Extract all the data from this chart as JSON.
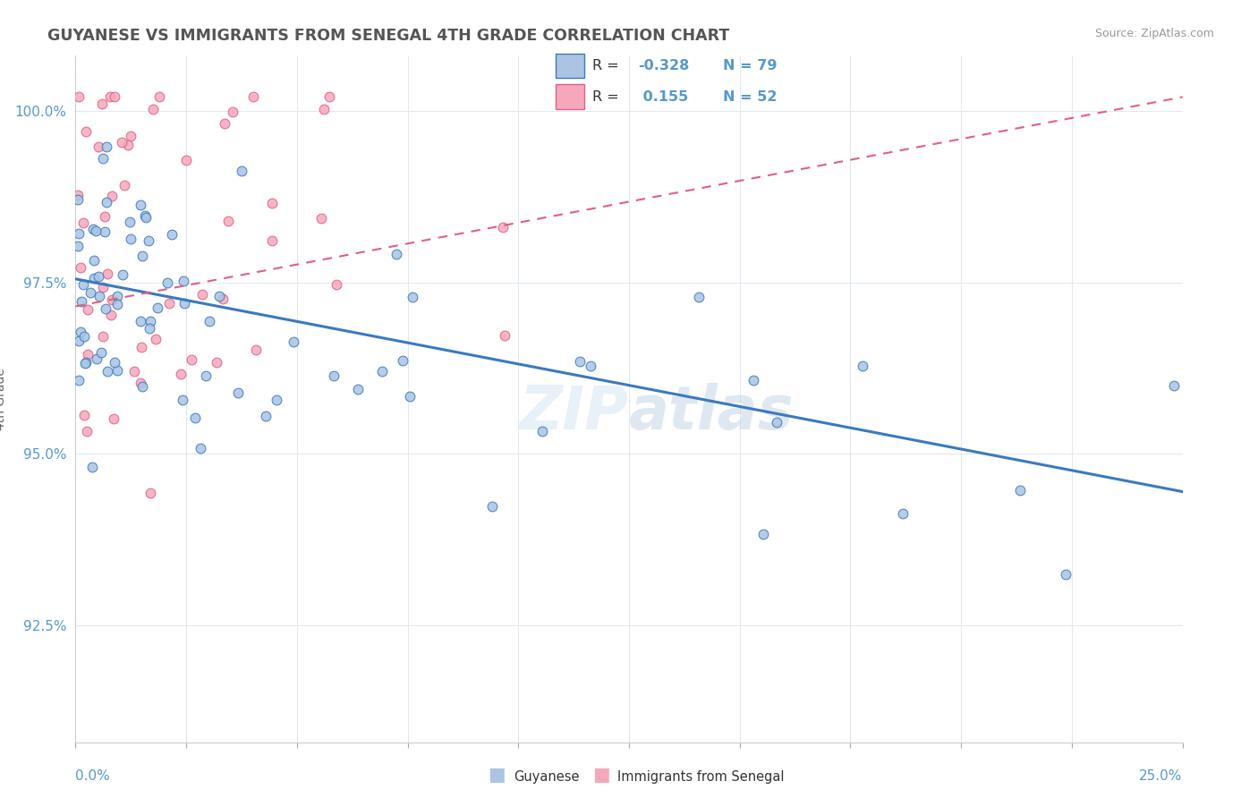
{
  "title": "GUYANESE VS IMMIGRANTS FROM SENEGAL 4TH GRADE CORRELATION CHART",
  "source": "Source: ZipAtlas.com",
  "ylabel": "4th Grade",
  "ylabel_ticks": [
    "92.5%",
    "95.0%",
    "97.5%",
    "100.0%"
  ],
  "ylabel_values": [
    0.925,
    0.95,
    0.975,
    1.0
  ],
  "xlim": [
    0.0,
    0.25
  ],
  "ylim": [
    0.908,
    1.008
  ],
  "r1": -0.328,
  "n1": 79,
  "r2": 0.155,
  "n2": 52,
  "blue_color": "#aac4e2",
  "pink_color": "#f5a8bc",
  "line_blue": "#3a7abf",
  "line_pink": "#e06080",
  "watermark": "ZIPatlas",
  "title_color": "#555555",
  "source_color": "#999999",
  "axis_label_color": "#5599cc",
  "ylabel_color": "#666666",
  "grid_color": "#e0e8f0"
}
